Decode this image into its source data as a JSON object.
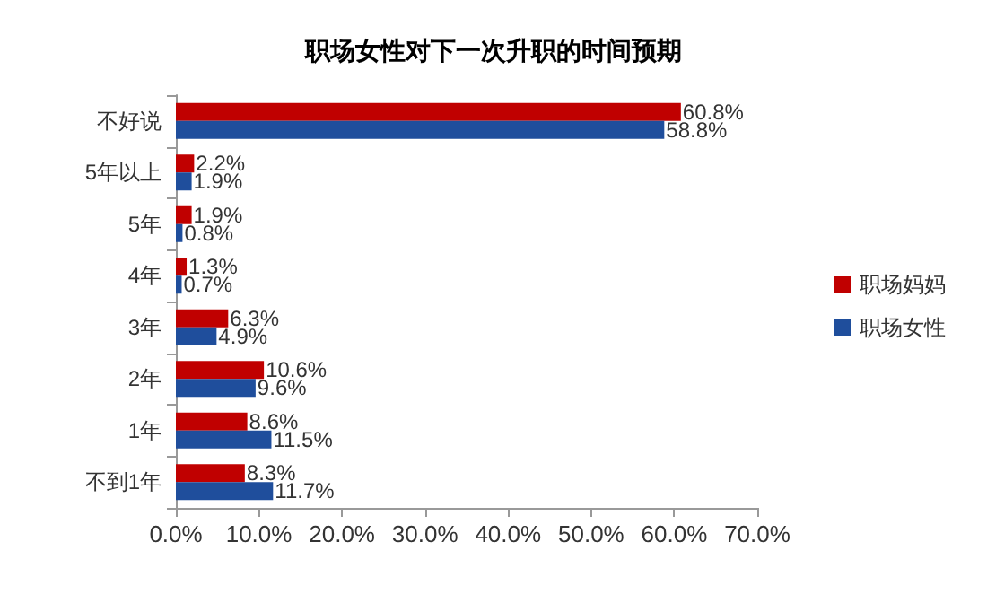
{
  "chart_data": {
    "type": "bar",
    "orientation": "horizontal",
    "title": "职场女性对下一次升职的时间预期",
    "categories": [
      "不好说",
      "5年以上",
      "5年",
      "4年",
      "3年",
      "2年",
      "1年",
      "不到1年"
    ],
    "series": [
      {
        "name": "职场妈妈",
        "color": "#c00000",
        "values": [
          60.8,
          2.2,
          1.9,
          1.3,
          6.3,
          10.6,
          8.6,
          8.3
        ],
        "value_labels": [
          "60.8%",
          "2.2%",
          "1.9%",
          "1.3%",
          "6.3%",
          "10.6%",
          "8.6%",
          "8.3%"
        ]
      },
      {
        "name": "职场女性",
        "color": "#1f4e9c",
        "values": [
          58.8,
          1.9,
          0.8,
          0.7,
          4.9,
          9.6,
          11.5,
          11.7
        ],
        "value_labels": [
          "58.8%",
          "1.9%",
          "0.8%",
          "0.7%",
          "4.9%",
          "9.6%",
          "11.5%",
          "11.7%"
        ]
      }
    ],
    "xlim": [
      0,
      70
    ],
    "xticks": [
      {
        "value": 0,
        "label": "0.0%"
      },
      {
        "value": 10,
        "label": "10.0%"
      },
      {
        "value": 20,
        "label": "20.0%"
      },
      {
        "value": 30,
        "label": "30.0%"
      },
      {
        "value": 40,
        "label": "40.0%"
      },
      {
        "value": 50,
        "label": "50.0%"
      },
      {
        "value": 60,
        "label": "60.0%"
      },
      {
        "value": 70,
        "label": "70.0%"
      }
    ],
    "grid": false,
    "legend": "right"
  }
}
